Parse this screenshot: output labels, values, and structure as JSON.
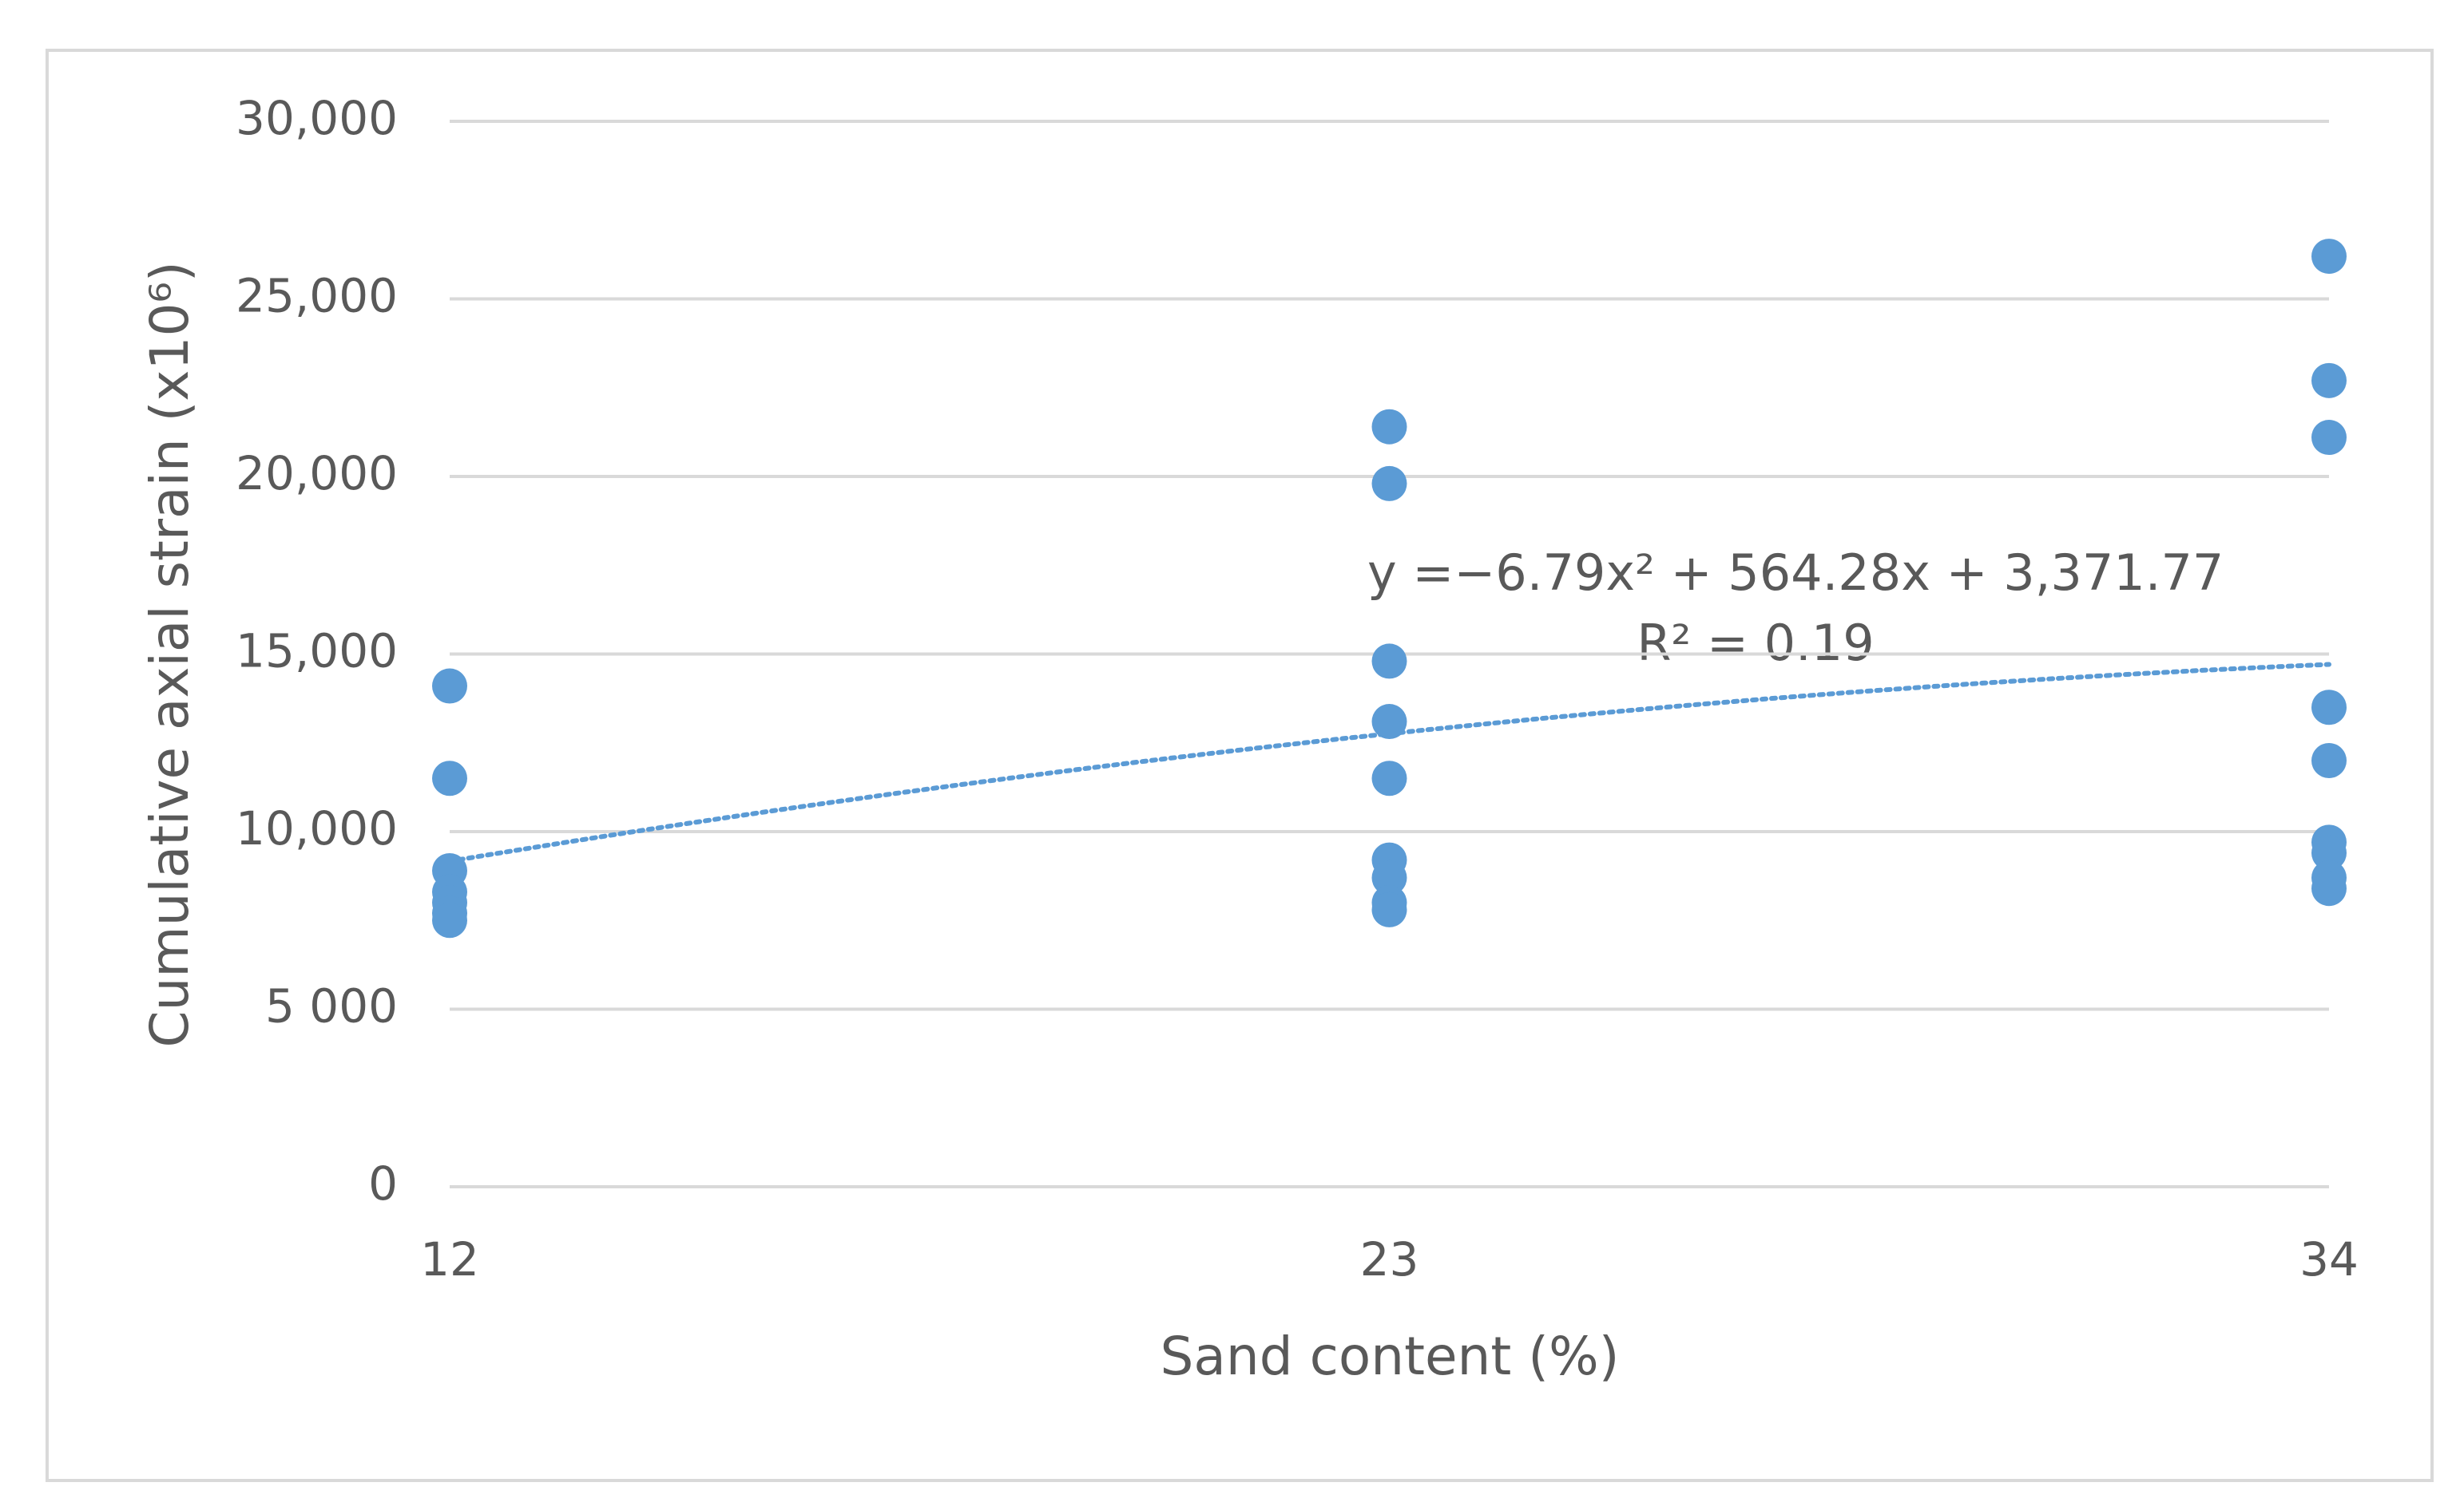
{
  "chart_data": {
    "type": "scatter",
    "x_label": "Sand content (%)",
    "y_label": "Cumulative axial strain (x10⁶)",
    "x": [
      12,
      12,
      12,
      12,
      12,
      12,
      12,
      23,
      23,
      23,
      23,
      23,
      23,
      23,
      23,
      23,
      34,
      34,
      34,
      34,
      34,
      34,
      34,
      34,
      34
    ],
    "values": [
      14100,
      11500,
      8900,
      8300,
      8000,
      7700,
      7500,
      21400,
      19800,
      14800,
      13100,
      11500,
      9200,
      8700,
      8000,
      7800,
      26200,
      22700,
      21100,
      13500,
      12000,
      9700,
      9400,
      8700,
      8400
    ],
    "color": "#5b9bd5",
    "xlim": [
      12,
      34
    ],
    "xticks": [
      12,
      23,
      34
    ],
    "ylim": [
      0,
      30000
    ],
    "yticks": [
      0,
      {
        "value": 5000,
        "label": "5 000"
      },
      {
        "value": 10000,
        "label": "10,000"
      },
      {
        "value": 15000,
        "label": "15,000"
      },
      {
        "value": 20000,
        "label": "20,000"
      },
      {
        "value": 25000,
        "label": "25,000"
      },
      {
        "value": 30000,
        "label": "30,000"
      }
    ],
    "grid": true,
    "trendline": {
      "coefficients": [
        -6.79,
        564.28,
        3371.77
      ],
      "equation": "y =−6.79x² + 564.28x + 3,371.77",
      "r2": "R² = 0.19"
    }
  }
}
